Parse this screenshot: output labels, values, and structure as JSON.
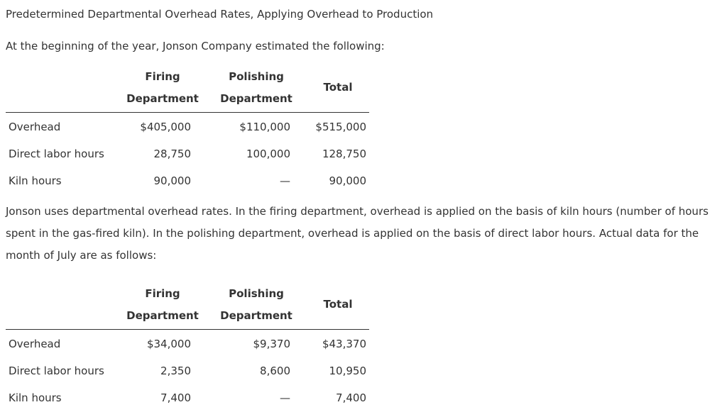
{
  "title": "Predetermined Departmental Overhead Rates, Applying Overhead to Production",
  "intro": "At the beginning of the year, Jonson Company estimated the following:",
  "paragraph": "Jonson uses departmental overhead rates. In the firing department, overhead is applied on the basis of kiln hours (number of hours spent in the gas-fired kiln). In the polishing department, overhead is applied on the basis of direct labor hours. Actual data for the month of July are as follows:",
  "table_estimated": {
    "headers": {
      "col1_line1": "Firing",
      "col1_line2": "Department",
      "col2_line1": "Polishing",
      "col2_line2": "Department",
      "col3": "Total"
    },
    "rows": [
      {
        "label": "Overhead",
        "firing": "$405,000",
        "polishing": "$110,000",
        "total": "$515,000"
      },
      {
        "label": "Direct labor hours",
        "firing": "28,750",
        "polishing": "100,000",
        "total": "128,750"
      },
      {
        "label": "Kiln hours",
        "firing": "90,000",
        "polishing": "—",
        "total": "90,000"
      }
    ]
  },
  "table_actual": {
    "headers": {
      "col1_line1": "Firing",
      "col1_line2": "Department",
      "col2_line1": "Polishing",
      "col2_line2": "Department",
      "col3": "Total"
    },
    "rows": [
      {
        "label": "Overhead",
        "firing": "$34,000",
        "polishing": "$9,370",
        "total": "$43,370"
      },
      {
        "label": "Direct labor hours",
        "firing": "2,350",
        "polishing": "8,600",
        "total": "10,950"
      },
      {
        "label": "Kiln hours",
        "firing": "7,400",
        "polishing": "—",
        "total": "7,400"
      }
    ]
  }
}
